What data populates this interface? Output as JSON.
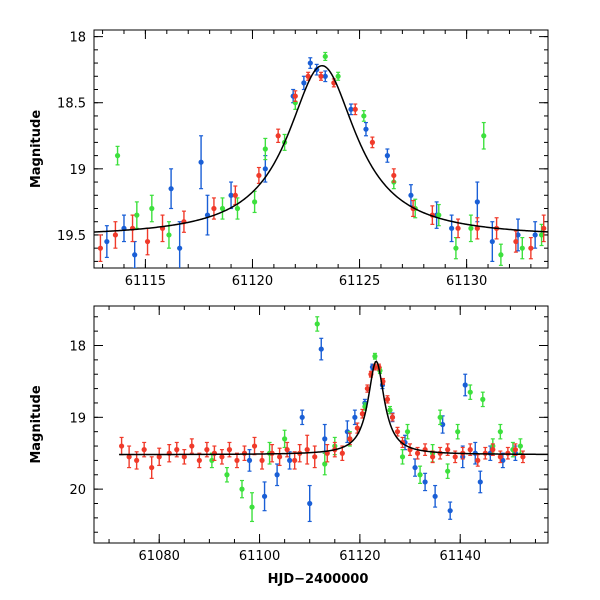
{
  "figure": {
    "xlabel_shared": "HJD−2400000"
  },
  "colors": {
    "blue": "#1a5fd6",
    "green": "#3de03d",
    "red": "#f03a2a",
    "model": "#000000"
  },
  "chart_data": [
    {
      "type": "scatter",
      "id": "top",
      "title": "",
      "xlabel": "",
      "ylabel": "Magnitude",
      "xlim": [
        61112.6,
        61133.8
      ],
      "ylim": [
        19.75,
        17.95
      ],
      "xticks_major": [
        61115,
        61120,
        61125,
        61130
      ],
      "xtick_labels": [
        "61115",
        "61120",
        "61125",
        "61130"
      ],
      "xticks_minor_step": 1,
      "yticks_major": [
        18,
        18.5,
        19,
        19.5
      ],
      "ytick_labels": [
        "18",
        "18.5",
        "19",
        "19.5"
      ],
      "yticks_minor_step": 0.1,
      "model": {
        "baseline": 19.52,
        "peak": 18.22,
        "t0": 61123.25,
        "width": 1.95
      },
      "series": [
        {
          "name": "blue",
          "color_key": "blue",
          "points": [
            [
              61113.2,
              19.55,
              0.12
            ],
            [
              61114.0,
              19.45,
              0.1
            ],
            [
              61114.5,
              19.65,
              0.1
            ],
            [
              61116.2,
              19.15,
              0.15
            ],
            [
              61116.6,
              19.6,
              0.2
            ],
            [
              61117.6,
              18.95,
              0.2
            ],
            [
              61117.9,
              19.35,
              0.15
            ],
            [
              61119.0,
              19.2,
              0.1
            ],
            [
              61120.6,
              19.0,
              0.1
            ],
            [
              61121.9,
              18.45,
              0.05
            ],
            [
              61122.4,
              18.35,
              0.05
            ],
            [
              61122.7,
              18.2,
              0.04
            ],
            [
              61123.0,
              18.25,
              0.04
            ],
            [
              61123.4,
              18.3,
              0.04
            ],
            [
              61124.6,
              18.55,
              0.04
            ],
            [
              61125.3,
              18.7,
              0.05
            ],
            [
              61126.3,
              18.9,
              0.05
            ],
            [
              61127.4,
              19.2,
              0.08
            ],
            [
              61128.6,
              19.35,
              0.1
            ],
            [
              61129.3,
              19.45,
              0.1
            ],
            [
              61130.5,
              19.25,
              0.15
            ],
            [
              61131.2,
              19.55,
              0.15
            ],
            [
              61132.4,
              19.5,
              0.12
            ],
            [
              61133.2,
              19.5,
              0.1
            ]
          ]
        },
        {
          "name": "green",
          "color_key": "green",
          "points": [
            [
              61113.7,
              18.9,
              0.07
            ],
            [
              61114.6,
              19.35,
              0.1
            ],
            [
              61115.3,
              19.3,
              0.1
            ],
            [
              61116.1,
              19.5,
              0.1
            ],
            [
              61118.6,
              19.3,
              0.08
            ],
            [
              61119.3,
              19.3,
              0.08
            ],
            [
              61120.1,
              19.25,
              0.08
            ],
            [
              61120.6,
              18.85,
              0.08
            ],
            [
              61121.5,
              18.8,
              0.06
            ],
            [
              61122.0,
              18.5,
              0.05
            ],
            [
              61123.4,
              18.15,
              0.03
            ],
            [
              61124.0,
              18.3,
              0.03
            ],
            [
              61125.2,
              18.6,
              0.04
            ],
            [
              61126.6,
              19.1,
              0.05
            ],
            [
              61127.6,
              19.3,
              0.07
            ],
            [
              61128.7,
              19.35,
              0.08
            ],
            [
              61129.5,
              19.6,
              0.08
            ],
            [
              61130.2,
              19.45,
              0.1
            ],
            [
              61130.8,
              18.75,
              0.1
            ],
            [
              61131.6,
              19.65,
              0.08
            ],
            [
              61132.6,
              19.6,
              0.08
            ],
            [
              61133.5,
              19.5,
              0.08
            ]
          ]
        },
        {
          "name": "red",
          "color_key": "red",
          "points": [
            [
              61112.9,
              19.6,
              0.1
            ],
            [
              61113.6,
              19.5,
              0.1
            ],
            [
              61114.4,
              19.45,
              0.1
            ],
            [
              61115.1,
              19.55,
              0.1
            ],
            [
              61115.8,
              19.45,
              0.1
            ],
            [
              61116.8,
              19.4,
              0.08
            ],
            [
              61118.2,
              19.3,
              0.08
            ],
            [
              61119.2,
              19.2,
              0.07
            ],
            [
              61120.3,
              19.05,
              0.06
            ],
            [
              61121.2,
              18.75,
              0.05
            ],
            [
              61122.0,
              18.45,
              0.04
            ],
            [
              61122.6,
              18.3,
              0.03
            ],
            [
              61123.2,
              18.3,
              0.03
            ],
            [
              61123.8,
              18.35,
              0.03
            ],
            [
              61124.8,
              18.55,
              0.04
            ],
            [
              61125.6,
              18.8,
              0.04
            ],
            [
              61126.6,
              19.05,
              0.05
            ],
            [
              61127.5,
              19.3,
              0.06
            ],
            [
              61128.4,
              19.35,
              0.07
            ],
            [
              61129.6,
              19.45,
              0.07
            ],
            [
              61130.5,
              19.45,
              0.08
            ],
            [
              61131.4,
              19.45,
              0.08
            ],
            [
              61132.3,
              19.55,
              0.08
            ],
            [
              61133.0,
              19.6,
              0.08
            ],
            [
              61133.6,
              19.45,
              0.1
            ]
          ]
        }
      ]
    },
    {
      "type": "scatter",
      "id": "bottom",
      "title": "",
      "xlabel": "HJD−2400000",
      "ylabel": "Magnitude",
      "xlim": [
        61067.0,
        61157.5
      ],
      "ylim": [
        20.75,
        17.45
      ],
      "xticks_major": [
        61080,
        61100,
        61120,
        61140
      ],
      "xtick_labels": [
        "61080",
        "61100",
        "61120",
        "61140"
      ],
      "xticks_minor_step": 5,
      "yticks_major": [
        18,
        19,
        20
      ],
      "ytick_labels": [
        "18",
        "19",
        "20"
      ],
      "yticks_minor_step": 0.2,
      "model": {
        "baseline": 19.52,
        "peak": 18.22,
        "t0": 61123.25,
        "width": 1.95,
        "x_start": 61072
      },
      "series": [
        {
          "name": "blue",
          "color_key": "blue",
          "points": [
            [
              61098.0,
              19.6,
              0.15
            ],
            [
              61101.0,
              20.1,
              0.2
            ],
            [
              61103.5,
              19.8,
              0.15
            ],
            [
              61106.0,
              19.6,
              0.12
            ],
            [
              61108.5,
              19.0,
              0.1
            ],
            [
              61110.0,
              20.2,
              0.25
            ],
            [
              61112.3,
              18.05,
              0.15
            ],
            [
              61113.0,
              19.3,
              0.2
            ],
            [
              61117.5,
              19.2,
              0.15
            ],
            [
              61119.0,
              19.0,
              0.1
            ],
            [
              61121.0,
              18.8,
              0.05
            ],
            [
              61122.5,
              18.3,
              0.04
            ],
            [
              61124.5,
              18.55,
              0.05
            ],
            [
              61126.5,
              19.0,
              0.06
            ],
            [
              61129.0,
              19.35,
              0.1
            ],
            [
              61131.0,
              19.7,
              0.12
            ],
            [
              61133.0,
              19.9,
              0.12
            ],
            [
              61135.0,
              20.1,
              0.15
            ],
            [
              61136.5,
              19.1,
              0.12
            ],
            [
              61138.0,
              20.3,
              0.12
            ],
            [
              61140.5,
              19.55,
              0.15
            ],
            [
              61141.0,
              18.55,
              0.15
            ],
            [
              61143.0,
              19.5,
              0.15
            ],
            [
              61144.0,
              19.9,
              0.15
            ],
            [
              61146.0,
              19.5,
              0.1
            ],
            [
              61148.5,
              19.6,
              0.1
            ],
            [
              61151.0,
              19.5,
              0.1
            ]
          ]
        },
        {
          "name": "green",
          "color_key": "green",
          "points": [
            [
              61090.5,
              19.6,
              0.1
            ],
            [
              61093.5,
              19.8,
              0.1
            ],
            [
              61096.5,
              20.0,
              0.12
            ],
            [
              61098.5,
              20.25,
              0.2
            ],
            [
              61102.0,
              19.5,
              0.15
            ],
            [
              61105.0,
              19.3,
              0.12
            ],
            [
              61111.5,
              17.7,
              0.1
            ],
            [
              61113.0,
              19.65,
              0.15
            ],
            [
              61115.0,
              19.4,
              0.12
            ],
            [
              61118.0,
              19.3,
              0.1
            ],
            [
              61121.0,
              18.85,
              0.05
            ],
            [
              61123.0,
              18.15,
              0.04
            ],
            [
              61124.0,
              18.35,
              0.04
            ],
            [
              61126.0,
              18.9,
              0.05
            ],
            [
              61128.5,
              19.55,
              0.1
            ],
            [
              61129.5,
              19.2,
              0.1
            ],
            [
              61132.0,
              19.8,
              0.12
            ],
            [
              61134.5,
              19.5,
              0.12
            ],
            [
              61136.0,
              19.0,
              0.1
            ],
            [
              61137.5,
              19.75,
              0.1
            ],
            [
              61139.5,
              19.2,
              0.1
            ],
            [
              61142.0,
              18.65,
              0.1
            ],
            [
              61144.5,
              18.75,
              0.1
            ],
            [
              61146.5,
              19.4,
              0.1
            ],
            [
              61148.0,
              19.2,
              0.1
            ],
            [
              61150.5,
              19.45,
              0.1
            ],
            [
              61152.0,
              19.4,
              0.1
            ]
          ]
        },
        {
          "name": "red",
          "color_key": "red",
          "points": [
            [
              61072.5,
              19.4,
              0.12
            ],
            [
              61074.0,
              19.55,
              0.15
            ],
            [
              61075.5,
              19.6,
              0.12
            ],
            [
              61077.0,
              19.45,
              0.1
            ],
            [
              61078.5,
              19.7,
              0.15
            ],
            [
              61080.0,
              19.55,
              0.12
            ],
            [
              61082.0,
              19.5,
              0.12
            ],
            [
              61083.5,
              19.45,
              0.1
            ],
            [
              61085.0,
              19.55,
              0.1
            ],
            [
              61086.5,
              19.4,
              0.1
            ],
            [
              61088.0,
              19.6,
              0.1
            ],
            [
              61089.5,
              19.45,
              0.1
            ],
            [
              61091.0,
              19.5,
              0.1
            ],
            [
              61092.5,
              19.55,
              0.1
            ],
            [
              61094.0,
              19.45,
              0.1
            ],
            [
              61095.5,
              19.6,
              0.1
            ],
            [
              61097.0,
              19.5,
              0.1
            ],
            [
              61099.0,
              19.4,
              0.12
            ],
            [
              61100.5,
              19.6,
              0.12
            ],
            [
              61102.5,
              19.5,
              0.12
            ],
            [
              61104.0,
              19.55,
              0.12
            ],
            [
              61105.5,
              19.45,
              0.1
            ],
            [
              61107.0,
              19.6,
              0.12
            ],
            [
              61108.0,
              19.5,
              0.12
            ],
            [
              61109.5,
              19.45,
              0.2
            ],
            [
              61111.0,
              19.55,
              0.15
            ],
            [
              61113.5,
              19.5,
              0.12
            ],
            [
              61115.0,
              19.45,
              0.1
            ],
            [
              61116.5,
              19.5,
              0.1
            ],
            [
              61118.0,
              19.3,
              0.08
            ],
            [
              61119.5,
              19.15,
              0.07
            ],
            [
              61120.5,
              18.95,
              0.06
            ],
            [
              61121.5,
              18.6,
              0.05
            ],
            [
              61122.2,
              18.4,
              0.04
            ],
            [
              61123.0,
              18.3,
              0.04
            ],
            [
              61123.8,
              18.3,
              0.04
            ],
            [
              61124.6,
              18.5,
              0.04
            ],
            [
              61125.5,
              18.75,
              0.05
            ],
            [
              61126.5,
              19.0,
              0.05
            ],
            [
              61127.5,
              19.2,
              0.06
            ],
            [
              61128.5,
              19.35,
              0.07
            ],
            [
              61130.0,
              19.45,
              0.08
            ],
            [
              61131.5,
              19.5,
              0.08
            ],
            [
              61133.0,
              19.45,
              0.08
            ],
            [
              61134.5,
              19.55,
              0.08
            ],
            [
              61136.0,
              19.5,
              0.08
            ],
            [
              61137.5,
              19.45,
              0.08
            ],
            [
              61139.0,
              19.55,
              0.08
            ],
            [
              61140.5,
              19.5,
              0.08
            ],
            [
              61142.0,
              19.45,
              0.08
            ],
            [
              61143.5,
              19.6,
              0.08
            ],
            [
              61145.0,
              19.5,
              0.08
            ],
            [
              61146.5,
              19.45,
              0.08
            ],
            [
              61148.0,
              19.55,
              0.08
            ],
            [
              61149.5,
              19.5,
              0.08
            ],
            [
              61151.0,
              19.45,
              0.08
            ],
            [
              61152.5,
              19.55,
              0.08
            ]
          ]
        }
      ]
    }
  ]
}
